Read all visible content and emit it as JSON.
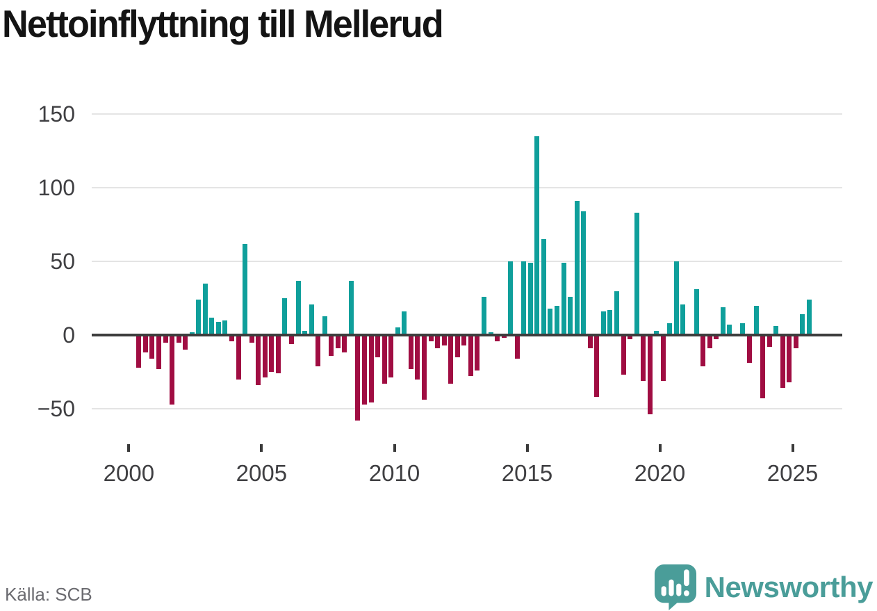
{
  "title": "Nettoinflyttning till Mellerud",
  "source": "Källa: SCB",
  "brand": {
    "name": "Newsworthy",
    "color": "#4a9d99"
  },
  "chart_data": {
    "type": "bar",
    "title": "Nettoinflyttning till Mellerud",
    "period": {
      "start": "2000 Q1",
      "end": "2025 Q3",
      "frequency": "quarterly"
    },
    "values": [
      0,
      -22,
      -12,
      -16,
      -23,
      -5,
      -47,
      -5,
      -10,
      2,
      24,
      35,
      12,
      9,
      10,
      -4,
      -30,
      62,
      -5,
      -34,
      -29,
      -25,
      -26,
      25,
      -6,
      37,
      3,
      21,
      -21,
      13,
      -14,
      -9,
      -12,
      37,
      -58,
      -47,
      -46,
      -15,
      -33,
      -29,
      5,
      16,
      -23,
      -30,
      -44,
      -4,
      -9,
      -7,
      -33,
      -15,
      -7,
      -28,
      -24,
      26,
      2,
      -4,
      -2,
      50,
      -16,
      50,
      49,
      135,
      65,
      18,
      20,
      49,
      26,
      91,
      84,
      -9,
      -42,
      16,
      17,
      30,
      -27,
      -3,
      83,
      -31,
      -54,
      3,
      -31,
      8,
      50,
      21,
      0,
      31,
      -21,
      -9,
      -3,
      19,
      7,
      0,
      8,
      -19,
      20,
      -43,
      -8,
      6,
      -36,
      -32,
      -9,
      14,
      24
    ],
    "y_axis": [
      {
        "label": "150",
        "value": 150
      },
      {
        "label": "100",
        "value": 100
      },
      {
        "label": "50",
        "value": 50
      },
      {
        "label": "0",
        "value": 0
      },
      {
        "label": "−50",
        "value": -50
      }
    ],
    "x_axis": [
      {
        "label": "2000",
        "year": 2000
      },
      {
        "label": "2005",
        "year": 2005
      },
      {
        "label": "2010",
        "year": 2010
      },
      {
        "label": "2015",
        "year": 2015
      },
      {
        "label": "2020",
        "year": 2020
      },
      {
        "label": "2025",
        "year": 2025
      }
    ],
    "ylim": [
      -65,
      150
    ],
    "grid": "horizontal",
    "legend": "none",
    "positive_color": "#0f9f9b",
    "negative_color": "#a00d42"
  }
}
